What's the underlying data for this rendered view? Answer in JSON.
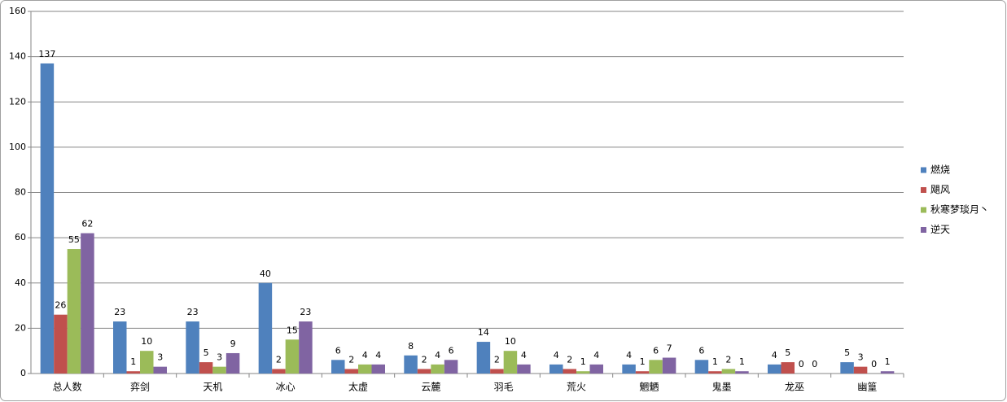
{
  "chart_data": {
    "type": "bar",
    "categories": [
      "总人数",
      "弈剑",
      "天机",
      "冰心",
      "太虚",
      "云麓",
      "羽毛",
      "荒火",
      "魍魉",
      "鬼墨",
      "龙巫",
      "幽篁"
    ],
    "series": [
      {
        "name": "燃烧",
        "color": "#4f81bd",
        "values": [
          137,
          23,
          23,
          40,
          6,
          8,
          14,
          4,
          4,
          6,
          4,
          5
        ]
      },
      {
        "name": "飓风",
        "color": "#c0504d",
        "values": [
          26,
          1,
          5,
          2,
          2,
          2,
          2,
          2,
          1,
          1,
          5,
          3
        ]
      },
      {
        "name": "秋寒梦琰月丶",
        "color": "#9bbb59",
        "values": [
          55,
          10,
          3,
          15,
          4,
          4,
          10,
          1,
          6,
          2,
          0,
          0
        ]
      },
      {
        "name": "逆天",
        "color": "#8064a2",
        "values": [
          62,
          3,
          9,
          23,
          4,
          6,
          4,
          4,
          7,
          1,
          0,
          1
        ]
      }
    ],
    "ylim": [
      0,
      160
    ],
    "yticks": [
      0,
      20,
      40,
      60,
      80,
      100,
      120,
      140,
      160
    ],
    "grid": true,
    "legend": "right"
  }
}
